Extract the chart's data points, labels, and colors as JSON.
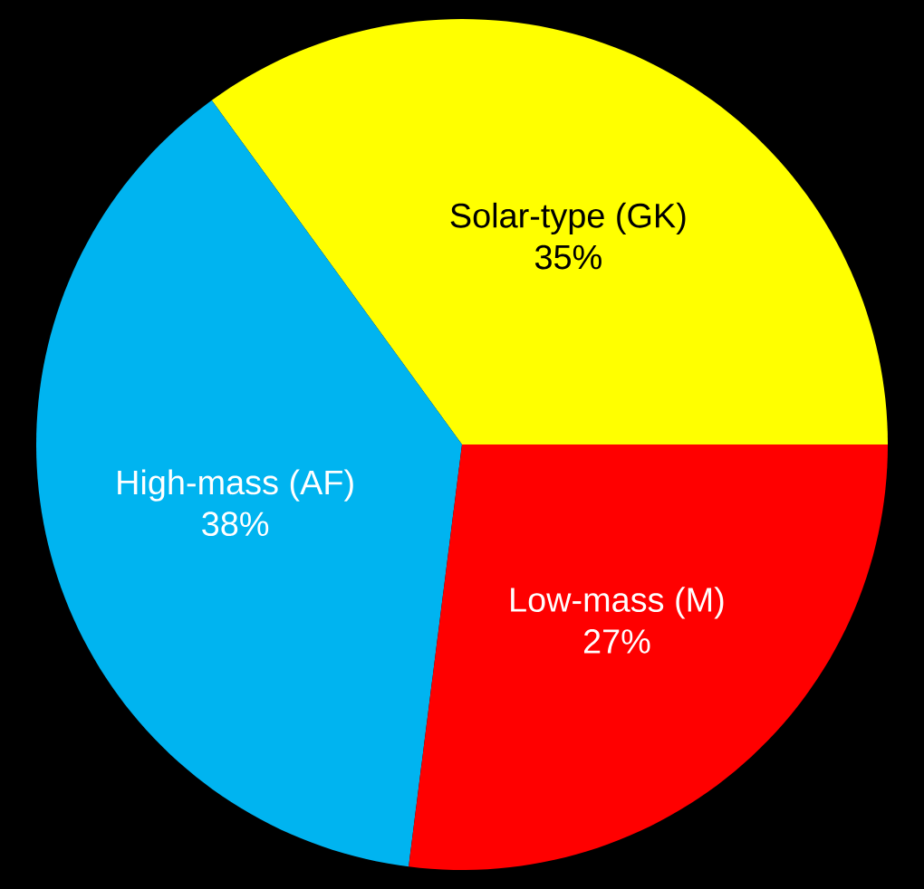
{
  "chart_data": {
    "type": "pie",
    "categories": [
      "Solar-type (GK)",
      "High-mass (AF)",
      "Low-mass (M)"
    ],
    "values": [
      35,
      38,
      27
    ],
    "value_labels": [
      "35%",
      "38%",
      "27%"
    ],
    "colors": [
      "#ffff00",
      "#00b4f0",
      "#ff0000"
    ]
  }
}
